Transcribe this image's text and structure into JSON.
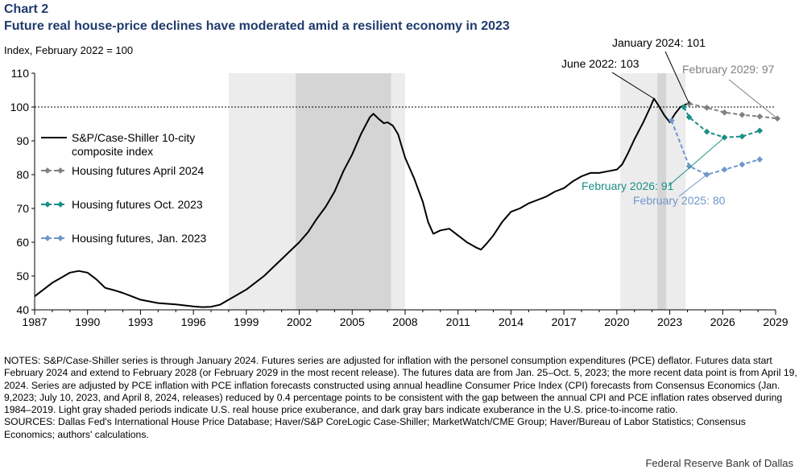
{
  "header": {
    "chart_number": "Chart 2",
    "title": "Future real house-price declines have moderated amid a resilient economy in 2023",
    "unit_label": "Index, February 2022 = 100"
  },
  "footer": {
    "notes": "NOTES: S&P/Case-Shiller series is through January 2024. Futures series are adjusted for inflation with the personel consumption expenditures (PCE) deflator. Futures data start February 2024 and extend to February 2028 (or February 2029 in the most recent release). The futures data are from Jan. 25–Oct. 5, 2023; the more recent data point is from April 19, 2024. Series are adjusted by PCE inflation with PCE inflation forecasts constructed using annual headline Consumer Price Index (CPI) forecasts from Consensus Economics (Jan. 9,2023; July 10, 2023, and April 8, 2024, releases) reduced by 0.4 percentage points to be consistent with the gap between the annual CPI and PCE inflation rates observed during 1984–2019. Light gray shaded periods indicate U.S. real house price exuberance, and dark gray bars indicate exuberance in the U.S. price-to-income ratio.",
    "sources": "SOURCES: Dallas Fed's International House Price Database; Haver/S&P CoreLogic Case-Shiller; MarketWatch/CME Group; Haver/Bureau of Labor Statistics; Consensus Economics; authors' calculations.",
    "credit": "Federal Reserve Bank of Dallas"
  },
  "chart_data": {
    "type": "line",
    "xlim": [
      1987,
      2029.2
    ],
    "ylim": [
      40,
      110
    ],
    "x_ticks": [
      1987,
      1990,
      1993,
      1996,
      1999,
      2002,
      2005,
      2008,
      2011,
      2014,
      2017,
      2020,
      2023,
      2026,
      2029
    ],
    "y_ticks": [
      40,
      50,
      60,
      70,
      80,
      90,
      100,
      110
    ],
    "grid": false,
    "reference_line": 100,
    "legend_position": "left",
    "shaded_light": [
      [
        1998.0,
        2008.0
      ],
      [
        2020.2,
        2023.9
      ]
    ],
    "shaded_dark": [
      [
        2001.8,
        2007.2
      ],
      [
        2022.3,
        2022.8
      ]
    ],
    "colors": {
      "case_shiller": "#000000",
      "futures_apr2024": "#808080",
      "futures_oct2023": "#1a8f86",
      "futures_jan2023": "#6f96cc",
      "shade_light": "#ececec",
      "shade_dark": "#d5d5d5",
      "title": "#1f3b6e"
    },
    "series": [
      {
        "name": "S&P/Case-Shiller 10-city composite index",
        "style": "solid",
        "points": [
          [
            1987.0,
            44.0
          ],
          [
            1987.5,
            46.0
          ],
          [
            1988.0,
            48.0
          ],
          [
            1988.5,
            49.5
          ],
          [
            1989.0,
            51.0
          ],
          [
            1989.5,
            51.5
          ],
          [
            1990.0,
            51.0
          ],
          [
            1990.5,
            49.0
          ],
          [
            1991.0,
            46.5
          ],
          [
            1991.5,
            45.8
          ],
          [
            1992.0,
            45.0
          ],
          [
            1992.5,
            44.0
          ],
          [
            1993.0,
            43.0
          ],
          [
            1994.0,
            42.0
          ],
          [
            1995.0,
            41.6
          ],
          [
            1996.0,
            41.0
          ],
          [
            1996.5,
            40.8
          ],
          [
            1997.0,
            40.9
          ],
          [
            1997.5,
            41.5
          ],
          [
            1998.0,
            43.0
          ],
          [
            1998.5,
            44.5
          ],
          [
            1999.0,
            46.0
          ],
          [
            1999.5,
            48.0
          ],
          [
            2000.0,
            50.0
          ],
          [
            2000.5,
            52.5
          ],
          [
            2001.0,
            55.0
          ],
          [
            2001.5,
            57.5
          ],
          [
            2002.0,
            60.0
          ],
          [
            2002.5,
            63.0
          ],
          [
            2003.0,
            67.0
          ],
          [
            2003.5,
            70.5
          ],
          [
            2004.0,
            75.0
          ],
          [
            2004.5,
            81.0
          ],
          [
            2005.0,
            86.0
          ],
          [
            2005.5,
            92.0
          ],
          [
            2005.8,
            95.0
          ],
          [
            2006.0,
            97.0
          ],
          [
            2006.2,
            98.0
          ],
          [
            2006.5,
            96.5
          ],
          [
            2006.8,
            95.2
          ],
          [
            2007.0,
            95.5
          ],
          [
            2007.3,
            94.5
          ],
          [
            2007.6,
            92.0
          ],
          [
            2008.0,
            85.0
          ],
          [
            2008.5,
            79.0
          ],
          [
            2009.0,
            72.0
          ],
          [
            2009.3,
            66.0
          ],
          [
            2009.6,
            62.5
          ],
          [
            2010.0,
            63.5
          ],
          [
            2010.5,
            64.0
          ],
          [
            2011.0,
            62.0
          ],
          [
            2011.5,
            60.0
          ],
          [
            2012.0,
            58.5
          ],
          [
            2012.3,
            57.8
          ],
          [
            2012.6,
            59.5
          ],
          [
            2013.0,
            62.0
          ],
          [
            2013.5,
            66.0
          ],
          [
            2014.0,
            69.0
          ],
          [
            2014.5,
            70.0
          ],
          [
            2015.0,
            71.5
          ],
          [
            2015.5,
            72.5
          ],
          [
            2016.0,
            73.5
          ],
          [
            2016.5,
            75.0
          ],
          [
            2017.0,
            76.0
          ],
          [
            2017.5,
            78.0
          ],
          [
            2018.0,
            79.5
          ],
          [
            2018.5,
            80.5
          ],
          [
            2019.0,
            80.5
          ],
          [
            2019.5,
            81.0
          ],
          [
            2020.0,
            81.5
          ],
          [
            2020.3,
            83.0
          ],
          [
            2020.6,
            86.0
          ],
          [
            2021.0,
            90.5
          ],
          [
            2021.5,
            95.5
          ],
          [
            2021.9,
            100.0
          ],
          [
            2022.1,
            102.5
          ],
          [
            2022.3,
            101.0
          ],
          [
            2022.7,
            97.5
          ],
          [
            2023.0,
            95.5
          ],
          [
            2023.3,
            98.0
          ],
          [
            2023.6,
            100.0
          ],
          [
            2024.0,
            101.0
          ]
        ]
      },
      {
        "name": "Housing futures April 2024",
        "style": "dashed",
        "marker": "diamond",
        "points": [
          [
            2024.1,
            101.0
          ],
          [
            2025.1,
            99.8
          ],
          [
            2026.1,
            98.4
          ],
          [
            2027.1,
            97.7
          ],
          [
            2028.1,
            97.2
          ],
          [
            2029.1,
            96.6
          ]
        ]
      },
      {
        "name": "Housing futures Oct. 2023",
        "style": "dashed",
        "marker": "diamond",
        "points": [
          [
            2023.8,
            100.0
          ],
          [
            2024.1,
            97.0
          ],
          [
            2025.1,
            92.7
          ],
          [
            2026.1,
            91.0
          ],
          [
            2027.1,
            91.3
          ],
          [
            2028.1,
            93.0
          ]
        ]
      },
      {
        "name": "Housing futures, Jan. 2023",
        "style": "dashed",
        "marker": "diamond",
        "points": [
          [
            2023.1,
            96.0
          ],
          [
            2024.1,
            82.5
          ],
          [
            2025.1,
            80.0
          ],
          [
            2026.1,
            81.5
          ],
          [
            2027.1,
            83.0
          ],
          [
            2028.1,
            84.5
          ]
        ]
      }
    ],
    "legend": [
      {
        "label_line1": "S&P/Case-Shiller 10-city",
        "label_line2": "composite index",
        "series": 0
      },
      {
        "label_line1": "Housing futures April 2024",
        "series": 1
      },
      {
        "label_line1": "Housing futures Oct. 2023",
        "series": 2
      },
      {
        "label_line1": "Housing futures, Jan. 2023",
        "series": 3
      }
    ],
    "annotations": [
      {
        "text": "January 2024: 101",
        "target": [
          2024.1,
          101.0
        ],
        "color": "#000000"
      },
      {
        "text": "June 2022: 103",
        "target": [
          2022.1,
          102.5
        ],
        "color": "#000000"
      },
      {
        "text": "February 2029: 97",
        "target": [
          2029.1,
          96.6
        ],
        "color": "#808080"
      },
      {
        "text": "February 2026: 91",
        "target": [
          2026.1,
          91.0
        ],
        "color": "#1a8f86"
      },
      {
        "text": "February 2025: 80",
        "target": [
          2025.1,
          80.0
        ],
        "color": "#6f96cc"
      }
    ]
  }
}
